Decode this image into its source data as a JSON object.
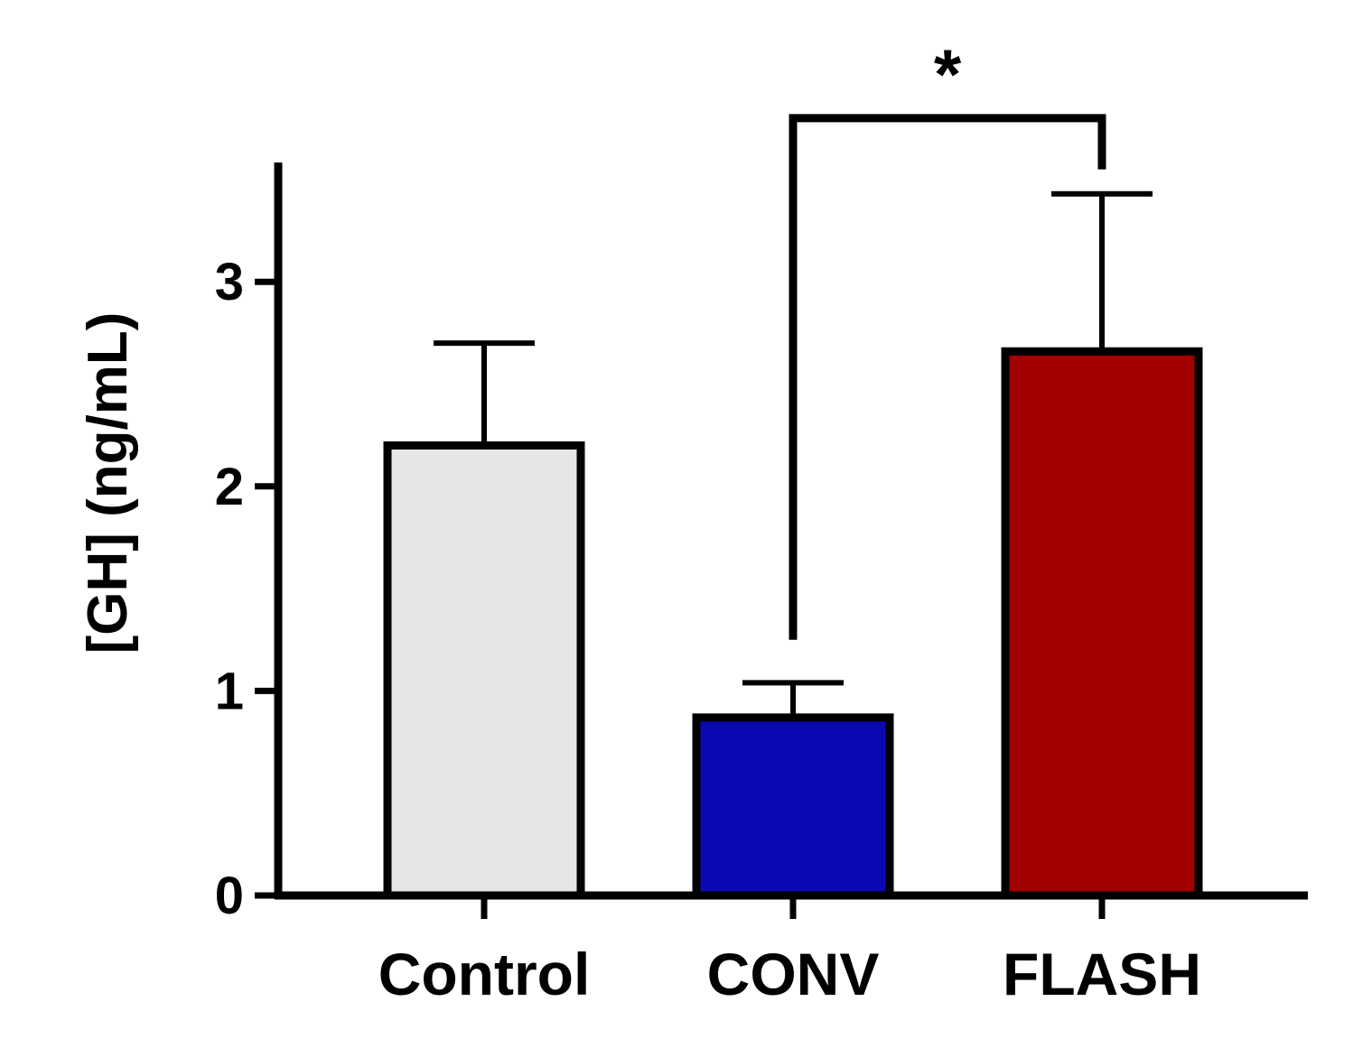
{
  "chart_data": {
    "type": "bar",
    "title": "",
    "xlabel": "",
    "ylabel": "[GH] (ng/mL)",
    "ylim": [
      0,
      3.6
    ],
    "yticks": [
      0,
      1,
      2,
      3
    ],
    "ytick_labels": [
      "0",
      "1",
      "2",
      "3"
    ],
    "grid": false,
    "legend": "none",
    "categories": [
      "Control",
      "CONV",
      "FLASH"
    ],
    "values": [
      2.2,
      0.87,
      2.66
    ],
    "errors": [
      0.5,
      0.17,
      0.77
    ],
    "colors": [
      "#e6e6e4",
      "#0a08b0",
      "#a00000"
    ],
    "significance": [
      {
        "from": "CONV",
        "to": "FLASH",
        "label": "*",
        "bracket_y": 3.8,
        "left_drop_to": 1.25,
        "right_drop_to": 3.55
      }
    ]
  }
}
